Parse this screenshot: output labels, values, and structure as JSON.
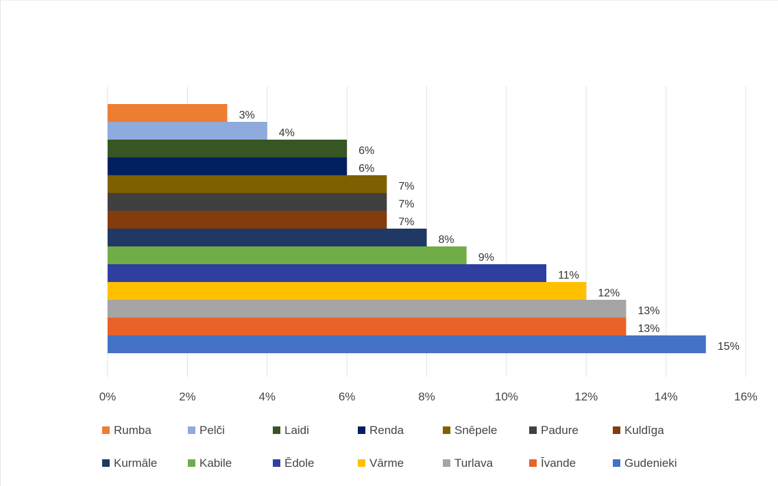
{
  "chart_data": {
    "type": "bar",
    "orientation": "horizontal",
    "categories": [
      "Rumba",
      "Pelči",
      "Laidi",
      "Renda",
      "Snēpele",
      "Padure",
      "Kuldīga",
      "Kurmāle",
      "Kabile",
      "Ēdole",
      "Vārme",
      "Turlava",
      "Īvande",
      "Gudenieki"
    ],
    "values": [
      3,
      4,
      6,
      6,
      7,
      7,
      7,
      8,
      9,
      11,
      12,
      13,
      13,
      15
    ],
    "data_labels": [
      "3%",
      "4%",
      "6%",
      "6%",
      "7%",
      "7%",
      "7%",
      "8%",
      "9%",
      "11%",
      "12%",
      "13%",
      "13%",
      "15%"
    ],
    "colors": [
      "#ed7d31",
      "#8faadc",
      "#375623",
      "#002060",
      "#7f6000",
      "#404040",
      "#843c0c",
      "#203864",
      "#70ad47",
      "#2f3fa0",
      "#ffc000",
      "#a5a5a5",
      "#e8622a",
      "#4472c4"
    ],
    "xlim": [
      0,
      16
    ],
    "x_ticks": [
      0,
      2,
      4,
      6,
      8,
      10,
      12,
      14,
      16
    ],
    "x_tick_labels": [
      "0%",
      "2%",
      "4%",
      "6%",
      "8%",
      "10%",
      "12%",
      "14%",
      "16%"
    ],
    "grid": true,
    "legend_position": "bottom",
    "title": "",
    "xlabel": "",
    "ylabel": ""
  }
}
